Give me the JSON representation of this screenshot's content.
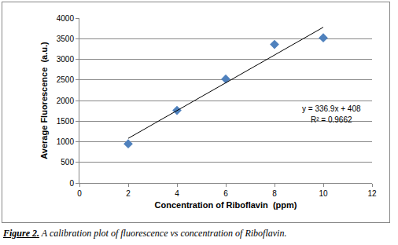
{
  "chart_data": {
    "type": "scatter",
    "x_label": "Concentration of Riboflavin  (ppm)",
    "y_label": "Average Fluorescence  (a.u.)",
    "x": [
      2,
      4,
      6,
      8,
      10
    ],
    "series": [
      {
        "type": "scatter",
        "color": "#4f81bd",
        "marker": "diamond",
        "values": [
          950,
          1760,
          2520,
          3360,
          3520
        ]
      },
      {
        "type": "line",
        "color": "#000000",
        "line_style": "solid",
        "x": [
          2,
          10
        ],
        "values": [
          1082,
          3777
        ]
      }
    ],
    "xlim": [
      0,
      12
    ],
    "xticks": [
      0,
      2,
      4,
      6,
      8,
      10,
      12
    ],
    "ylim": [
      0,
      4000
    ],
    "yticks": [
      0,
      500,
      1000,
      1500,
      2000,
      2500,
      3000,
      3500,
      4000
    ],
    "grid": true,
    "annotations": [
      "y = 336.9x + 408",
      "R² = 0.9662"
    ],
    "caption": [
      "Figure 2.",
      "A calibration plot of fluorescence vs concentration of Riboflavin."
    ]
  }
}
